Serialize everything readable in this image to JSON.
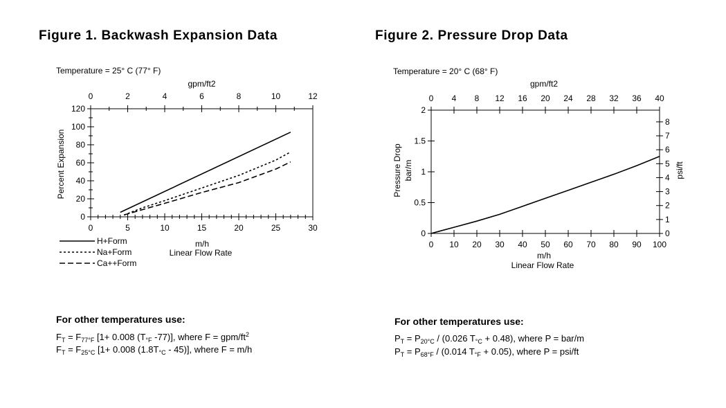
{
  "figure1": {
    "title": "Figure 1. Backwash Expansion Data",
    "temperature": "Temperature = 25° C (77° F)",
    "formula_heading": "For other temperatures use:",
    "formula1": {
      "lhs": "F",
      "lhs_sub": "T",
      "eq": " = F",
      "sub1": "77°F",
      "mid": " [1+ 0.008 (T",
      "sub2": "°F",
      "end": " -77)], where F = gpm/ft",
      "sup": "2"
    },
    "formula2": {
      "lhs": "F",
      "lhs_sub": "T",
      "eq": " = F",
      "sub1": "25°C",
      "mid": " [1+ 0.008 (1.8T",
      "sub2": "°C",
      "end": " - 45)], where F = m/h"
    }
  },
  "figure2": {
    "title": "Figure 2. Pressure Drop Data",
    "temperature": "Temperature = 20° C (68° F)",
    "formula_heading": "For other temperatures use:",
    "formula1": {
      "lhs": "P",
      "lhs_sub": "T",
      "eq": " = P",
      "sub1": "20°C",
      "mid": " / (0.026 T",
      "sub2": "°C",
      "end": " + 0.48), where P = bar/m"
    },
    "formula2": {
      "lhs": "P",
      "lhs_sub": "T",
      "eq": " = P",
      "sub1": "68°F",
      "mid": " / (0.014 T",
      "sub2": "°F",
      "end": " + 0.05), where P = psi/ft"
    }
  },
  "chart_data": [
    {
      "type": "line",
      "ylabel": "Percent Expansion",
      "xlabel": "m/h",
      "xlabel2": "Linear Flow Rate",
      "x2label": "gpm/ft2",
      "xlim": [
        0,
        30
      ],
      "ylim": [
        0,
        120
      ],
      "x2lim": [
        0,
        12
      ],
      "xticks": [
        0,
        5,
        10,
        15,
        20,
        25,
        30
      ],
      "yticks": [
        0,
        20,
        40,
        60,
        80,
        100,
        120
      ],
      "x2ticks": [
        0,
        2,
        4,
        6,
        8,
        10,
        12
      ],
      "legend_position": "bottom-left",
      "series": [
        {
          "name": "H+Form",
          "style": "solid",
          "x": [
            4,
            27
          ],
          "y": [
            5,
            94
          ]
        },
        {
          "name": "Na+Form",
          "style": "dotted",
          "x": [
            4.5,
            7,
            10,
            15,
            20,
            25,
            27
          ],
          "y": [
            2,
            10,
            18,
            32,
            46,
            63,
            72
          ]
        },
        {
          "name": "Ca++Form",
          "style": "dashed",
          "x": [
            4.5,
            7,
            10,
            15,
            20,
            25,
            27
          ],
          "y": [
            2,
            8,
            15,
            27,
            38,
            53,
            61
          ]
        }
      ]
    },
    {
      "type": "line",
      "ylabel": "Pressure Drop",
      "ylabel2": "bar/m",
      "y2label": "psi/ft",
      "xlabel": "m/h",
      "xlabel2": "Linear Flow Rate",
      "x2label": "gpm/ft2",
      "xlim": [
        0,
        100
      ],
      "ylim": [
        0,
        2
      ],
      "y2lim": [
        0,
        8.84
      ],
      "x2lim": [
        0,
        40
      ],
      "xticks": [
        0,
        10,
        20,
        30,
        40,
        50,
        60,
        70,
        80,
        90,
        100
      ],
      "yticks": [
        0,
        0.5,
        1,
        1.5,
        2
      ],
      "ytick_labels": [
        "0",
        "0.5",
        "1",
        "1.5",
        "2"
      ],
      "y2ticks": [
        0,
        1,
        2,
        3,
        4,
        5,
        6,
        7,
        8
      ],
      "x2ticks": [
        0,
        4,
        8,
        12,
        16,
        20,
        24,
        28,
        32,
        36,
        40
      ],
      "series": [
        {
          "style": "solid",
          "x": [
            0,
            10,
            20,
            30,
            40,
            50,
            60,
            70,
            80,
            90,
            100
          ],
          "y": [
            0,
            0.1,
            0.2,
            0.31,
            0.44,
            0.57,
            0.7,
            0.83,
            0.96,
            1.1,
            1.25
          ]
        }
      ]
    }
  ]
}
